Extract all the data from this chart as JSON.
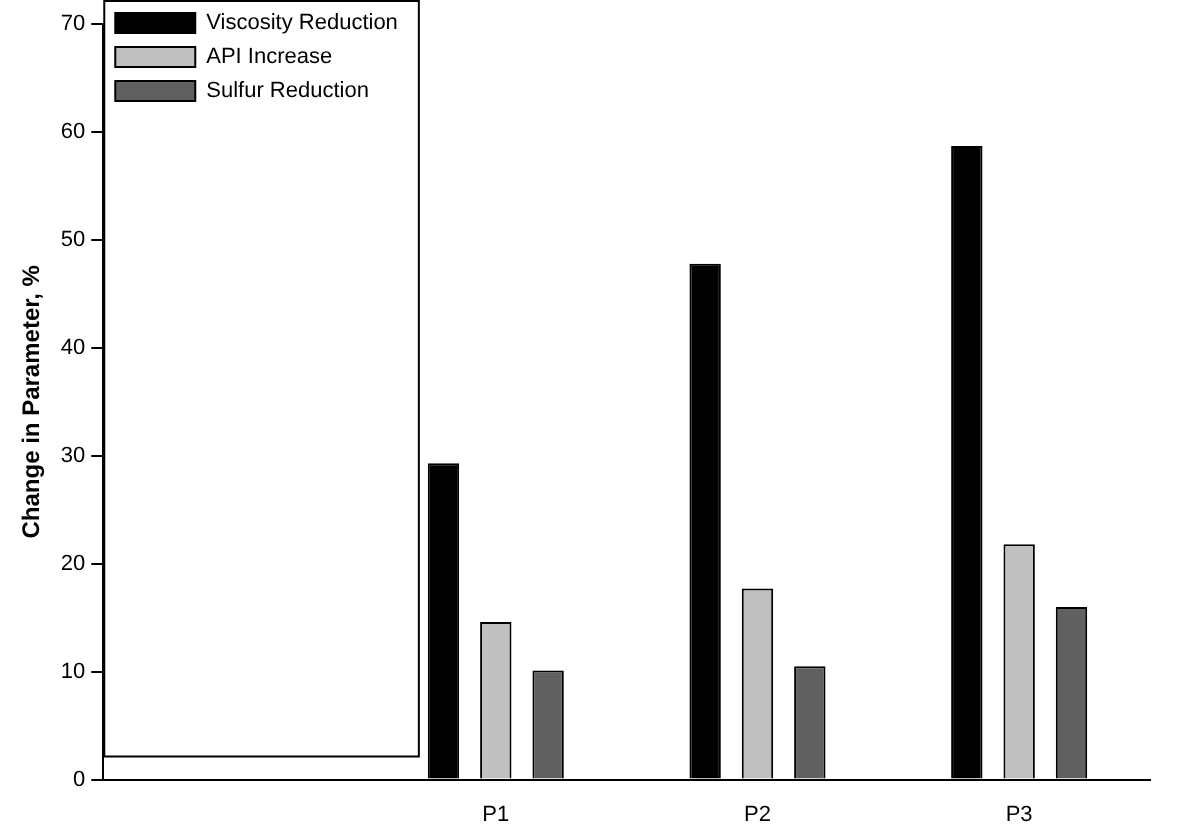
{
  "chart_data": {
    "type": "bar",
    "ylabel": "Change in Parameter, %",
    "categories": [
      null,
      "P1",
      "P2",
      "P3"
    ],
    "series": [
      {
        "name": "Viscosity Reduction",
        "color": "#000000",
        "values": [
          null,
          29.3,
          47.8,
          58.7
        ]
      },
      {
        "name": "API Increase",
        "color": "#c0c0c0",
        "values": [
          null,
          14.6,
          17.7,
          21.8
        ]
      },
      {
        "name": "Sulfur Reduction",
        "color": "#606060",
        "values": [
          null,
          10.1,
          10.5,
          16.0
        ]
      }
    ],
    "ylim": [
      0,
      70
    ],
    "yticks": [
      0,
      10,
      20,
      30,
      40,
      50,
      60,
      70
    ],
    "grid": false,
    "legend": "top left"
  }
}
